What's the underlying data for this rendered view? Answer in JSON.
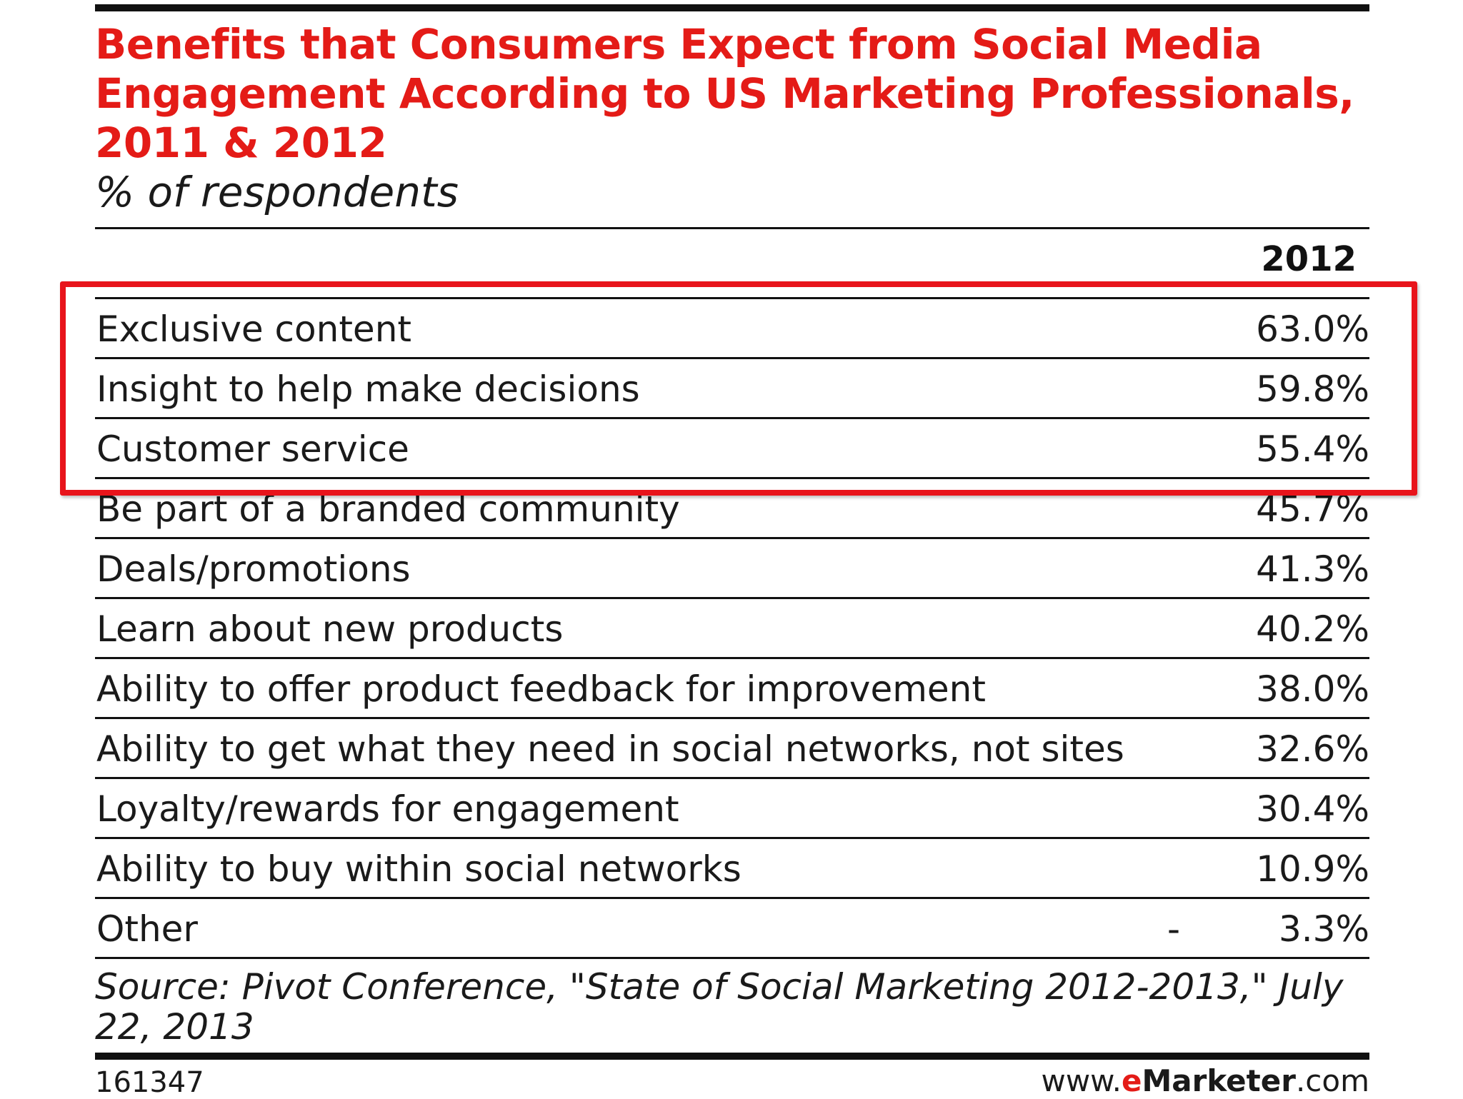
{
  "chart_data": {
    "type": "table",
    "title": "Benefits that Consumers Expect from Social Media Engagement According to US Marketing Professionals, 2011 & 2012",
    "subtitle": "% of respondents",
    "column_header": "2012",
    "unit": "%",
    "rows": [
      {
        "label": "Exclusive content",
        "value": 63.0,
        "display": "63.0%",
        "prev": ""
      },
      {
        "label": "Insight to help make decisions",
        "value": 59.8,
        "display": "59.8%",
        "prev": ""
      },
      {
        "label": "Customer service",
        "value": 55.4,
        "display": "55.4%",
        "prev": ""
      },
      {
        "label": "Be part of a branded community",
        "value": 45.7,
        "display": "45.7%",
        "prev": ""
      },
      {
        "label": "Deals/promotions",
        "value": 41.3,
        "display": "41.3%",
        "prev": ""
      },
      {
        "label": "Learn about new products",
        "value": 40.2,
        "display": "40.2%",
        "prev": ""
      },
      {
        "label": "Ability to offer product feedback for improvement",
        "value": 38.0,
        "display": "38.0%",
        "prev": ""
      },
      {
        "label": "Ability to get what they need in social networks, not sites",
        "value": 32.6,
        "display": "32.6%",
        "prev": ""
      },
      {
        "label": "Loyalty/rewards for engagement",
        "value": 30.4,
        "display": "30.4%",
        "prev": ""
      },
      {
        "label": "Ability to buy within social networks",
        "value": 10.9,
        "display": "10.9%",
        "prev": ""
      },
      {
        "label": "Other",
        "value": 3.3,
        "display": "3.3%",
        "prev": "-"
      }
    ],
    "highlighted_rows": [
      0,
      1,
      2
    ],
    "source": "Source: Pivot Conference, \"State of Social Marketing 2012-2013,\" July 22, 2013",
    "chart_id": "161347",
    "brand": {
      "prefix": "www.",
      "e": "e",
      "marketer": "Marketer",
      "suffix": ".com"
    },
    "colors": {
      "title": "#e41b17",
      "highlight": "#e8141b",
      "rules": "#111111"
    }
  }
}
